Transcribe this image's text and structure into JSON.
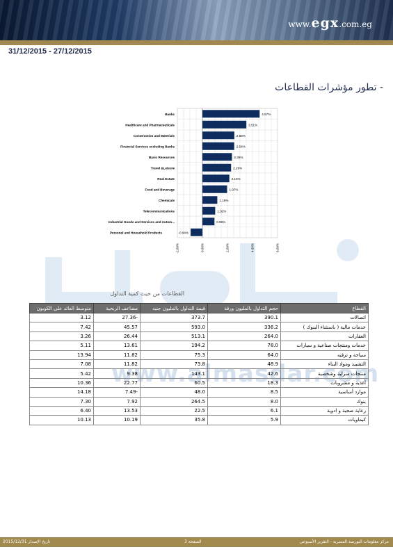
{
  "header": {
    "logo_prefix": "www.",
    "logo_main": "egx",
    "logo_suffix": ".com.eg",
    "date_range": "31/12/2015 - 27/12/2015"
  },
  "section_title": "- تطور مؤشرات القطاعات",
  "watermark": {
    "url_text": "www.almasdar.com"
  },
  "chart_data": {
    "type": "bar",
    "orientation": "horizontal",
    "categories": [
      "Banks",
      "Healthcare and Pharmaceuticals",
      "Construction and Materials",
      "Financial Services excluding Banks",
      "Basic Resources",
      "Travel &Leisure",
      "Real Estate",
      "Food and Beverage",
      "Chemicals",
      "Telecommunications",
      "Industrial Goods and Services and Autom...",
      "Personal and Household Products"
    ],
    "values": [
      4.57,
      3.51,
      2.55,
      2.54,
      2.36,
      2.29,
      2.15,
      1.97,
      1.19,
      1.02,
      0.96,
      -0.94
    ],
    "data_labels": [
      "4.57%",
      "3.51%",
      "2.55%",
      "2.54%",
      "2.36%",
      "2.29%",
      "2.15%",
      "1.97%",
      "1.19%",
      "1.02%",
      "0.96%",
      "-0.94%"
    ],
    "xlim": [
      -2,
      6
    ],
    "ticks": [
      -2,
      0,
      2,
      4,
      6
    ],
    "tick_labels": [
      "-2.00%",
      "0.00%",
      "2.00%",
      "4.00%",
      "6.00%"
    ],
    "grid": true,
    "bar_color": "#0e2d5e"
  },
  "table": {
    "title": "القطاعات من حيث كمية التداول",
    "headers": [
      "القطاع",
      "حجم التداول بالمليون ورقة",
      "قيمة التداول بالمليون جنيه",
      "مضاعف الربحية",
      "متوسط العائد على الكوبون"
    ],
    "rows": [
      [
        "اتصالات",
        "390.1",
        "373.7",
        "27.36-",
        "3.12"
      ],
      [
        "خدمات مالية ( باستثناء البنوك )",
        "336.2",
        "593.0",
        "45.57",
        "7.42"
      ],
      [
        "العقارات",
        "264.0",
        "513.1",
        "26.44",
        "3.26"
      ],
      [
        "خدمات ومنتجات صناعية و سيارات",
        "78.0",
        "194.2",
        "13.61",
        "5.11"
      ],
      [
        "سياحة و ترفيه",
        "64.0",
        "75.3",
        "11.82",
        "13.94"
      ],
      [
        "التشييد ومواد البناء",
        "48.9",
        "73.8",
        "11.82",
        "7.08"
      ],
      [
        "منتجات منزلية وشخصية",
        "42.6",
        "143.1",
        "9.38",
        "5.42"
      ],
      [
        "أغذية و مشروبات",
        "18.3",
        "60.5",
        "22.77",
        "10.36"
      ],
      [
        "موارد أساسية",
        "8.5",
        "48.0",
        "7.49-",
        "14.18"
      ],
      [
        "بنوك",
        "8.0",
        "264.5",
        "7.92",
        "7.30"
      ],
      [
        "رعاية صحية و ادوية",
        "6.1",
        "22.5",
        "13.53",
        "6.40"
      ],
      [
        "كيماويات",
        "5.9",
        "35.8",
        "10.19",
        "10.13"
      ]
    ]
  },
  "footer": {
    "left": "2015/12/31  تاريخ الإصدار",
    "center": "الصفحة 3",
    "right": "مركز معلومات البورصة المصرية - التقرير الأسبوعي"
  },
  "colors": {
    "header_gold": "#a0884f",
    "table_header": "#6d6d6d",
    "title_navy": "#1f2a4d"
  }
}
